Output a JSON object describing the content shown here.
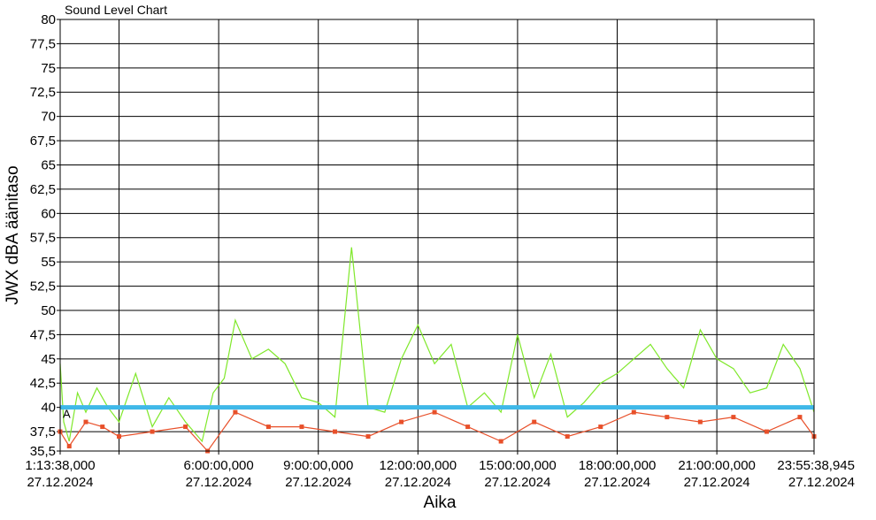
{
  "chart_data": {
    "type": "line",
    "title": "Sound Level Chart",
    "xlabel": "Aika",
    "ylabel": "JWX dBA äänitaso",
    "ylim": [
      35.5,
      80
    ],
    "yticks": [
      "80",
      "77,5",
      "75",
      "72,5",
      "70",
      "67,5",
      "65",
      "62,5",
      "60",
      "57,5",
      "55",
      "52,5",
      "50",
      "47,5",
      "45",
      "42,5",
      "40",
      "37,5",
      "35,5"
    ],
    "xlim": [
      "2024-12-27T01:13:38",
      "2024-12-27T23:55:38.945"
    ],
    "xticks": [
      {
        "time": "2024-12-27T01:13:38",
        "label1": "1:13:38,000",
        "label2": "27.12.2024"
      },
      {
        "time": "2024-12-27T03:00:00",
        "label1": "",
        "label2": ""
      },
      {
        "time": "2024-12-27T06:00:00",
        "label1": "6:00:00,000",
        "label2": "27.12.2024"
      },
      {
        "time": "2024-12-27T09:00:00",
        "label1": "9:00:00,000",
        "label2": "27.12.2024"
      },
      {
        "time": "2024-12-27T12:00:00",
        "label1": "12:00:00,000",
        "label2": "27.12.2024"
      },
      {
        "time": "2024-12-27T15:00:00",
        "label1": "15:00:00,000",
        "label2": "27.12.2024"
      },
      {
        "time": "2024-12-27T18:00:00",
        "label1": "18:00:00,000",
        "label2": "27.12.2024"
      },
      {
        "time": "2024-12-27T21:00:00",
        "label1": "21:00:00,000",
        "label2": "27.12.2024"
      },
      {
        "time": "2024-12-27T23:55:38.945",
        "label1": "23:55:38,945",
        "label2": "27.12.2024"
      }
    ],
    "grid": true,
    "reference_line": {
      "y": 40,
      "label": "A",
      "color": "#3fb8e8"
    },
    "series": [
      {
        "color": "#7fe82a",
        "x": [
          "2024-12-27T01:13:38",
          "2024-12-27T01:20:00",
          "2024-12-27T01:30:00",
          "2024-12-27T01:45:00",
          "2024-12-27T02:00:00",
          "2024-12-27T02:20:00",
          "2024-12-27T02:40:00",
          "2024-12-27T03:00:00",
          "2024-12-27T03:30:00",
          "2024-12-27T04:00:00",
          "2024-12-27T04:30:00",
          "2024-12-27T05:00:00",
          "2024-12-27T05:30:00",
          "2024-12-27T05:50:00",
          "2024-12-27T06:10:00",
          "2024-12-27T06:30:00",
          "2024-12-27T07:00:00",
          "2024-12-27T07:30:00",
          "2024-12-27T08:00:00",
          "2024-12-27T08:30:00",
          "2024-12-27T09:00:00",
          "2024-12-27T09:30:00",
          "2024-12-27T10:00:00",
          "2024-12-27T10:30:00",
          "2024-12-27T11:00:00",
          "2024-12-27T11:30:00",
          "2024-12-27T12:00:00",
          "2024-12-27T12:30:00",
          "2024-12-27T13:00:00",
          "2024-12-27T13:30:00",
          "2024-12-27T14:00:00",
          "2024-12-27T14:30:00",
          "2024-12-27T15:00:00",
          "2024-12-27T15:30:00",
          "2024-12-27T16:00:00",
          "2024-12-27T16:30:00",
          "2024-12-27T17:00:00",
          "2024-12-27T17:30:00",
          "2024-12-27T18:00:00",
          "2024-12-27T18:30:00",
          "2024-12-27T19:00:00",
          "2024-12-27T19:30:00",
          "2024-12-27T20:00:00",
          "2024-12-27T20:30:00",
          "2024-12-27T21:00:00",
          "2024-12-27T21:30:00",
          "2024-12-27T22:00:00",
          "2024-12-27T22:30:00",
          "2024-12-27T23:00:00",
          "2024-12-27T23:30:00",
          "2024-12-27T23:55:38.945"
        ],
        "y": [
          44.5,
          38.5,
          36.5,
          41.5,
          39.5,
          42.0,
          40.0,
          38.5,
          43.5,
          38.0,
          41.0,
          38.5,
          36.5,
          41.5,
          43.0,
          49.0,
          45.0,
          46.0,
          44.5,
          41.0,
          40.5,
          39.0,
          56.5,
          40.0,
          39.5,
          45.0,
          48.5,
          44.5,
          46.5,
          40.0,
          41.5,
          39.5,
          47.5,
          41.0,
          45.5,
          39.0,
          40.5,
          42.5,
          43.5,
          45.0,
          46.5,
          44.0,
          42.0,
          48.0,
          45.0,
          44.0,
          41.5,
          42.0,
          46.5,
          44.0,
          39.5
        ]
      },
      {
        "color": "#e8502a",
        "x": [
          "2024-12-27T01:13:38",
          "2024-12-27T01:30:00",
          "2024-12-27T02:00:00",
          "2024-12-27T02:30:00",
          "2024-12-27T03:00:00",
          "2024-12-27T04:00:00",
          "2024-12-27T05:00:00",
          "2024-12-27T05:40:00",
          "2024-12-27T06:30:00",
          "2024-12-27T07:30:00",
          "2024-12-27T08:30:00",
          "2024-12-27T09:30:00",
          "2024-12-27T10:30:00",
          "2024-12-27T11:30:00",
          "2024-12-27T12:30:00",
          "2024-12-27T13:30:00",
          "2024-12-27T14:30:00",
          "2024-12-27T15:30:00",
          "2024-12-27T16:30:00",
          "2024-12-27T17:30:00",
          "2024-12-27T18:30:00",
          "2024-12-27T19:30:00",
          "2024-12-27T20:30:00",
          "2024-12-27T21:30:00",
          "2024-12-27T22:30:00",
          "2024-12-27T23:30:00",
          "2024-12-27T23:55:38.945"
        ],
        "y": [
          37.5,
          36.0,
          38.5,
          38.0,
          37.0,
          37.5,
          38.0,
          35.5,
          39.5,
          38.0,
          38.0,
          37.5,
          37.0,
          38.5,
          39.5,
          38.0,
          36.5,
          38.5,
          37.0,
          38.0,
          39.5,
          39.0,
          38.5,
          39.0,
          37.5,
          39.0,
          37.0
        ]
      }
    ]
  }
}
